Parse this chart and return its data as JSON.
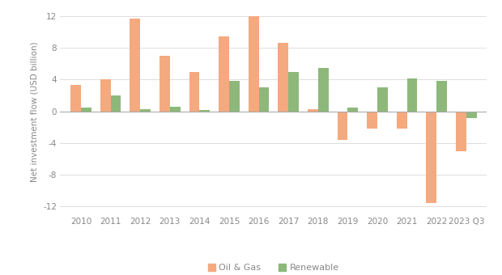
{
  "years": [
    "2010",
    "2011",
    "2012",
    "2013",
    "2014",
    "2015",
    "2016",
    "2017",
    "2018",
    "2019",
    "2020",
    "2021",
    "2022",
    "2023 Q3"
  ],
  "oil_gas": [
    3.3,
    4.0,
    11.7,
    7.0,
    5.0,
    9.5,
    12.0,
    8.6,
    0.3,
    -3.6,
    -2.2,
    -2.2,
    -11.6,
    -5.0
  ],
  "renewable": [
    0.5,
    2.0,
    0.3,
    0.6,
    0.2,
    3.8,
    3.0,
    5.0,
    5.5,
    0.5,
    3.0,
    4.2,
    3.8,
    -0.8
  ],
  "oil_gas_color": "#F4A97F",
  "renewable_color": "#8DB87A",
  "ylabel": "Net investment flow (USD billion)",
  "ylim": [
    -13,
    13
  ],
  "yticks": [
    -12,
    -8,
    -4,
    0,
    4,
    8,
    12
  ],
  "legend_oil": "Oil & Gas",
  "legend_renewable": "Renewable",
  "bar_width": 0.35,
  "grid_color": "#DDDDDD",
  "bg_color": "#FFFFFF",
  "zero_line_color": "#AAAAAA",
  "tick_color": "#888888",
  "ylabel_color": "#888888",
  "ylabel_fontsize": 7.5,
  "tick_fontsize": 7.5
}
